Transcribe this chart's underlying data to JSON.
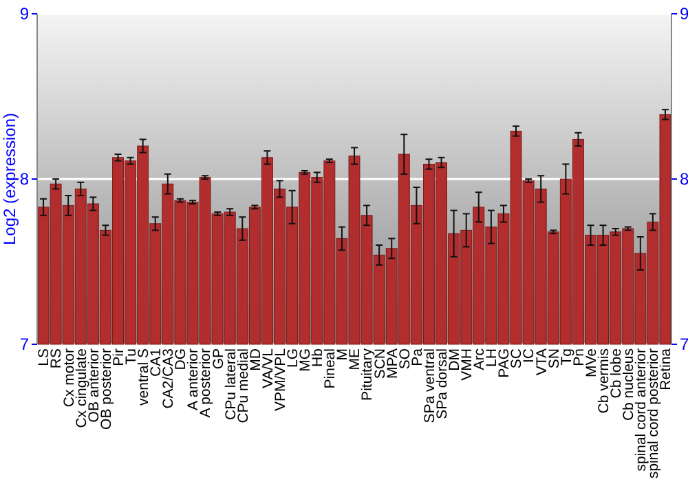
{
  "chart_data": {
    "type": "bar",
    "ylabel": "Log2 (expression)",
    "categories": [
      "LS",
      "RS",
      "Cx motor",
      "Cx cingulate",
      "OB anterior",
      "OB posterior",
      "Pir",
      "Tu",
      "ventral S",
      "CA1",
      "CA2/CA3",
      "DG",
      "A anterior",
      "A posterior",
      "GP",
      "CPu lateral",
      "CPu medial",
      "MD",
      "VA/VL",
      "VPM/VPL",
      "LG",
      "MG",
      "Hb",
      "Pineal",
      "M",
      "ME",
      "Pituitary",
      "SCN",
      "MPA",
      "SO",
      "Pa",
      "SPa ventral",
      "SPa dorsal",
      "DM",
      "VMH",
      "Arc",
      "LH",
      "PAG",
      "SC",
      "IC",
      "VTA",
      "SN",
      "Tg",
      "Pn",
      "MVe",
      "Cb vermis",
      "Cb lobe",
      "Cb nucleus",
      "spinal cord anterior",
      "spinal cord posterior",
      "Retina"
    ],
    "values": [
      7.83,
      7.97,
      7.84,
      7.94,
      7.85,
      7.69,
      8.13,
      8.11,
      8.2,
      7.73,
      7.97,
      7.87,
      7.86,
      8.01,
      7.79,
      7.8,
      7.7,
      7.83,
      8.13,
      7.94,
      7.83,
      8.04,
      8.01,
      8.11,
      7.64,
      8.14,
      7.78,
      7.54,
      7.58,
      8.15,
      7.84,
      8.09,
      8.1,
      7.67,
      7.69,
      7.83,
      7.71,
      7.79,
      8.29,
      7.99,
      7.94,
      7.68,
      8,
      8.24,
      7.66,
      7.66,
      7.68,
      7.7,
      7.55,
      7.74,
      8.39
    ],
    "errors": [
      0.05,
      0.03,
      0.06,
      0.04,
      0.04,
      0.03,
      0.02,
      0.02,
      0.04,
      0.04,
      0.06,
      0.01,
      0.01,
      0.01,
      0.01,
      0.02,
      0.07,
      0.01,
      0.04,
      0.05,
      0.1,
      0.01,
      0.03,
      0.01,
      0.07,
      0.05,
      0.06,
      0.06,
      0.06,
      0.12,
      0.11,
      0.03,
      0.03,
      0.14,
      0.1,
      0.09,
      0.1,
      0.05,
      0.03,
      0.01,
      0.08,
      0.01,
      0.09,
      0.04,
      0.06,
      0.06,
      0.02,
      0.01,
      0.1,
      0.05,
      0.03
    ],
    "color": "#b22d2d",
    "ylim": [
      7,
      9
    ],
    "yticks": [
      7,
      8,
      9
    ],
    "y2lim": [
      7,
      9
    ],
    "y2ticks": [
      7,
      8,
      9
    ],
    "grid": "y"
  }
}
